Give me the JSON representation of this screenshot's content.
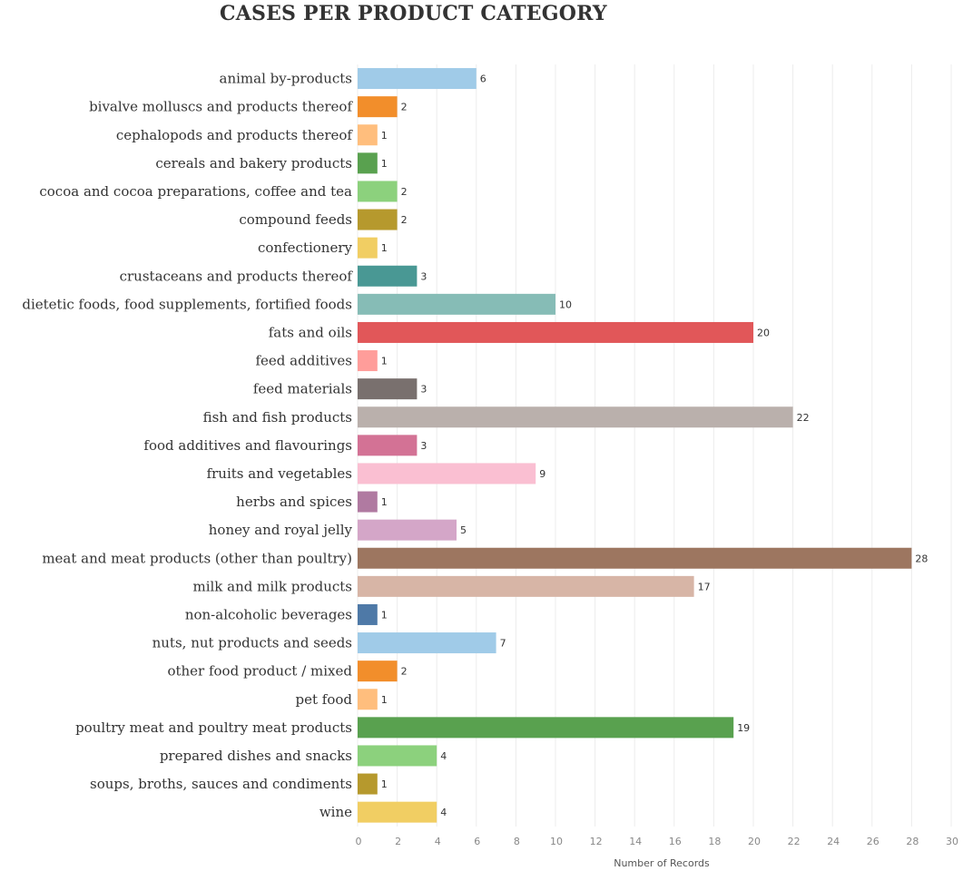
{
  "chart_data": {
    "type": "bar",
    "orientation": "horizontal",
    "title": "CASES PER PRODUCT CATEGORY",
    "xlabel": "Number of Records",
    "xlim": [
      0,
      30
    ],
    "xticks": [
      0,
      2,
      4,
      6,
      8,
      10,
      12,
      14,
      16,
      18,
      20,
      22,
      24,
      26,
      28,
      30
    ],
    "grid": true,
    "legend": "none",
    "categories": [
      "animal by-products",
      "bivalve molluscs and products thereof",
      "cephalopods and products thereof",
      "cereals and bakery products",
      "cocoa and cocoa preparations, coffee and tea",
      "compound feeds",
      "confectionery",
      "crustaceans and products thereof",
      "dietetic foods, food supplements, fortified foods",
      "fats and oils",
      "feed additives",
      "feed materials",
      "fish and fish products",
      "food additives and flavourings",
      "fruits and vegetables",
      "herbs and spices",
      "honey and royal jelly",
      "meat and meat products (other than poultry)",
      "milk and milk products",
      "non-alcoholic beverages",
      "nuts, nut products and seeds",
      "other food product / mixed",
      "pet food",
      "poultry meat and poultry meat products",
      "prepared dishes and snacks",
      "soups, broths, sauces and condiments",
      "wine"
    ],
    "values": [
      6,
      2,
      1,
      1,
      2,
      2,
      1,
      3,
      10,
      20,
      1,
      3,
      22,
      3,
      9,
      1,
      5,
      28,
      17,
      1,
      7,
      2,
      1,
      19,
      4,
      1,
      4
    ],
    "colors": [
      "#a0cbe8",
      "#f28e2b",
      "#ffbe7d",
      "#59a14f",
      "#8cd17d",
      "#b6992d",
      "#f1ce63",
      "#499894",
      "#86bcb6",
      "#e15759",
      "#ff9d9a",
      "#79706e",
      "#bab0ac",
      "#d37295",
      "#fabfd2",
      "#b07aa1",
      "#d4a6c8",
      "#9d7660",
      "#d7b5a6",
      "#4e79a7",
      "#a0cbe8",
      "#f28e2b",
      "#ffbe7d",
      "#59a14f",
      "#8cd17d",
      "#b6992d",
      "#f1ce63"
    ]
  }
}
